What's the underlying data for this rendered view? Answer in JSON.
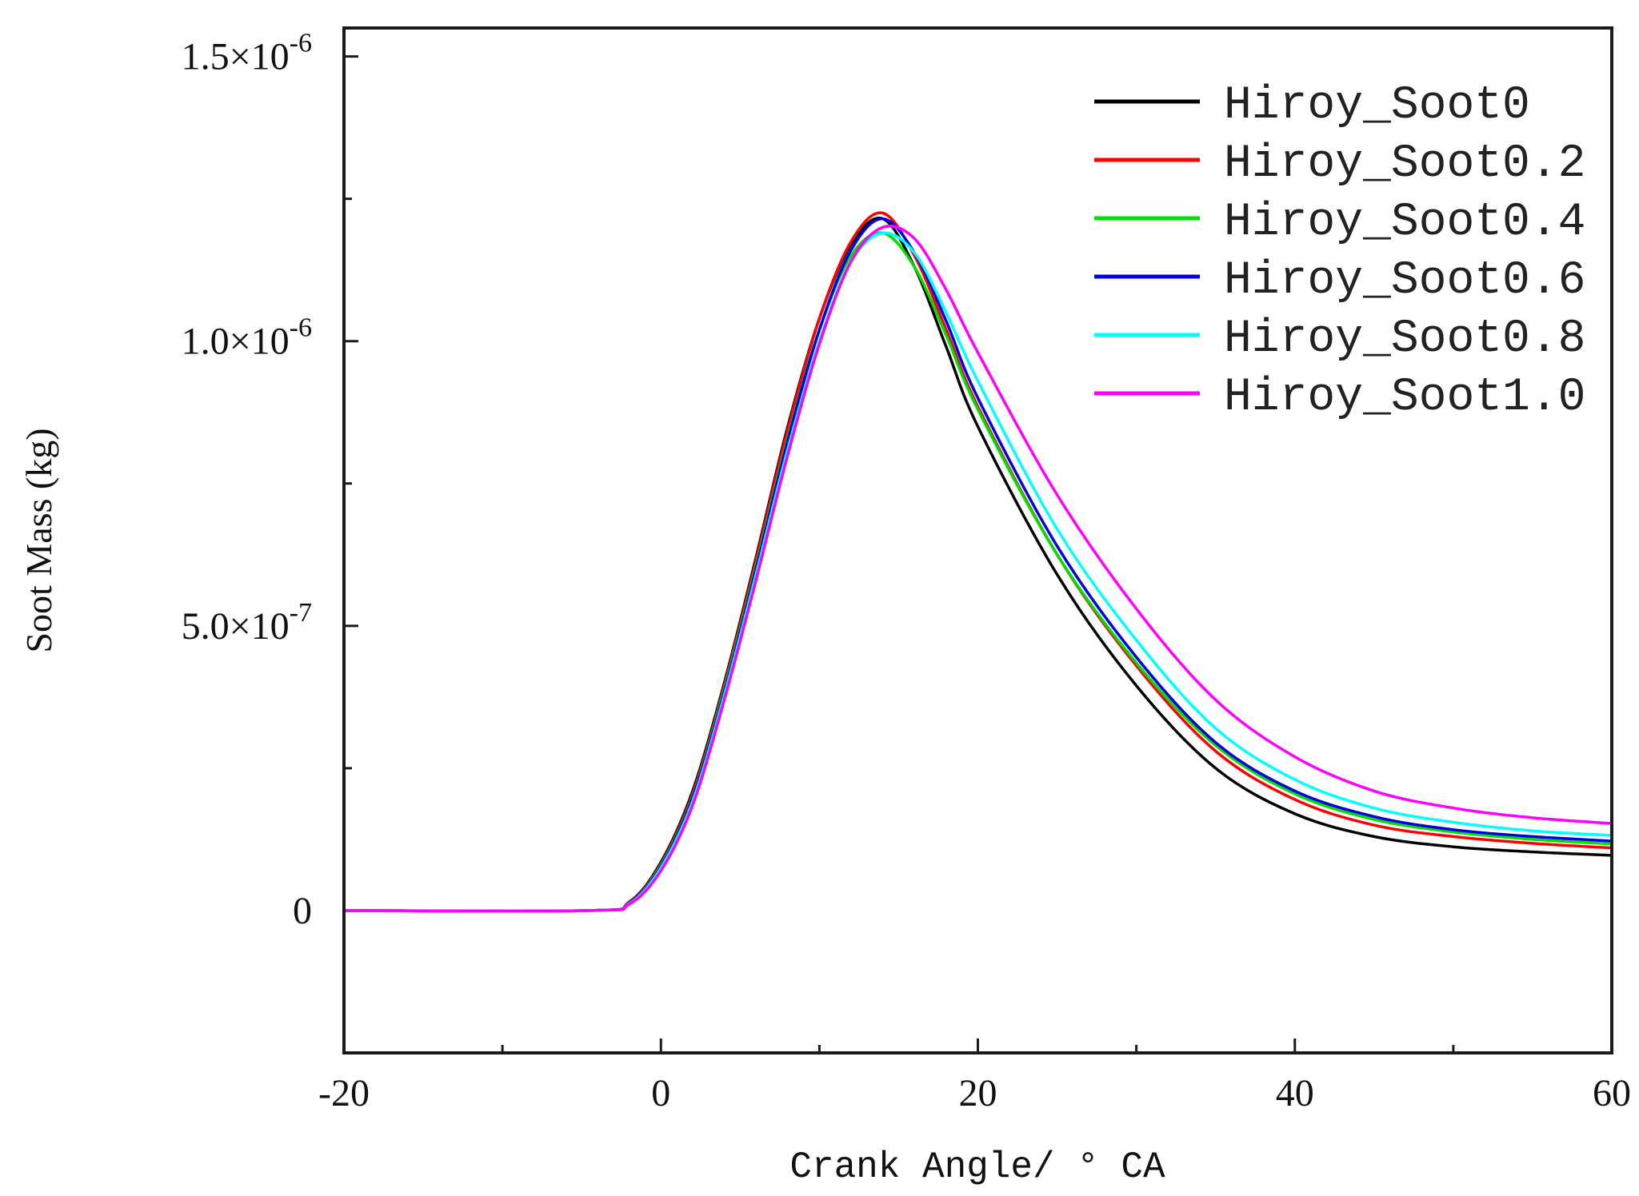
{
  "chart_data": {
    "type": "line",
    "title": "",
    "xlabel": "Crank Angle/ ° CA",
    "ylabel": "Soot Mass (kg)",
    "xlim": [
      -20,
      60
    ],
    "ylim": [
      -2.5e-07,
      1.55e-06
    ],
    "x_ticks": [
      -20,
      0,
      20,
      40,
      60
    ],
    "x_tick_labels": [
      "-20",
      "0",
      "20",
      "40",
      "60"
    ],
    "y_ticks": [
      0,
      5e-07,
      1e-06,
      1.5e-06
    ],
    "y_tick_labels": [
      {
        "mantissa": "0",
        "exponent": ""
      },
      {
        "mantissa": "5.0×10",
        "exponent": "-7"
      },
      {
        "mantissa": "1.0×10",
        "exponent": "-6"
      },
      {
        "mantissa": "1.5×10",
        "exponent": "-6"
      }
    ],
    "legend_position": "top-right",
    "x": [
      -20,
      -4.5,
      -2,
      0,
      2,
      4,
      6,
      8,
      10,
      12,
      14,
      16,
      18,
      20,
      25,
      30,
      35,
      40,
      45,
      50,
      55,
      60
    ],
    "series": [
      {
        "name": "Hiroy_Soot0",
        "color": "#000000",
        "values": [
          0,
          0,
          1.5e-08,
          8.5e-08,
          2.1e-07,
          4e-07,
          6.2e-07,
          8.5e-07,
          1.04e-06,
          1.17e-06,
          1.215e-06,
          1.13e-06,
          9.9e-07,
          8.5e-07,
          5.9e-07,
          3.95e-07,
          2.5e-07,
          1.7e-07,
          1.3e-07,
          1.12e-07,
          1.03e-07,
          9.7e-08
        ]
      },
      {
        "name": "Hiroy_Soot0.2",
        "color": "#ff0000",
        "values": [
          0,
          0,
          1.4e-08,
          8.2e-08,
          2.05e-07,
          3.95e-07,
          6.15e-07,
          8.45e-07,
          1.04e-06,
          1.175e-06,
          1.225e-06,
          1.15e-06,
          1.02e-06,
          8.85e-07,
          6.25e-07,
          4.3e-07,
          2.8e-07,
          1.95e-07,
          1.5e-07,
          1.3e-07,
          1.18e-07,
          1.1e-07
        ]
      },
      {
        "name": "Hiroy_Soot0.4",
        "color": "#00e000",
        "values": [
          0,
          0,
          1.3e-08,
          8e-08,
          2e-07,
          3.9e-07,
          6.05e-07,
          8.3e-07,
          1.02e-06,
          1.15e-06,
          1.19e-06,
          1.13e-06,
          1.01e-06,
          8.8e-07,
          6.25e-07,
          4.35e-07,
          2.9e-07,
          2.05e-07,
          1.6e-07,
          1.38e-07,
          1.25e-07,
          1.17e-07
        ]
      },
      {
        "name": "Hiroy_Soot0.6",
        "color": "#0000e0",
        "values": [
          0,
          0,
          1.3e-08,
          7.8e-08,
          1.98e-07,
          3.85e-07,
          6e-07,
          8.25e-07,
          1.02e-06,
          1.16e-06,
          1.215e-06,
          1.155e-06,
          1.035e-06,
          9e-07,
          6.4e-07,
          4.45e-07,
          2.95e-07,
          2.1e-07,
          1.65e-07,
          1.42e-07,
          1.3e-07,
          1.22e-07
        ]
      },
      {
        "name": "Hiroy_Soot0.8",
        "color": "#00ffff",
        "values": [
          0,
          0,
          1.2e-08,
          7.5e-08,
          1.92e-07,
          3.78e-07,
          5.9e-07,
          8.1e-07,
          1e-06,
          1.14e-06,
          1.19e-06,
          1.155e-06,
          1.05e-06,
          9.3e-07,
          6.7e-07,
          4.75e-07,
          3.2e-07,
          2.3e-07,
          1.8e-07,
          1.55e-07,
          1.4e-07,
          1.32e-07
        ]
      },
      {
        "name": "Hiroy_Soot1.0",
        "color": "#ff00ff",
        "values": [
          0,
          0,
          1.1e-08,
          7e-08,
          1.85e-07,
          3.7e-07,
          5.8e-07,
          8e-07,
          9.95e-07,
          1.14e-06,
          1.2e-06,
          1.18e-06,
          1.09e-06,
          9.8e-07,
          7.3e-07,
          5.3e-07,
          3.7e-07,
          2.7e-07,
          2.1e-07,
          1.8e-07,
          1.63e-07,
          1.53e-07
        ]
      }
    ]
  }
}
